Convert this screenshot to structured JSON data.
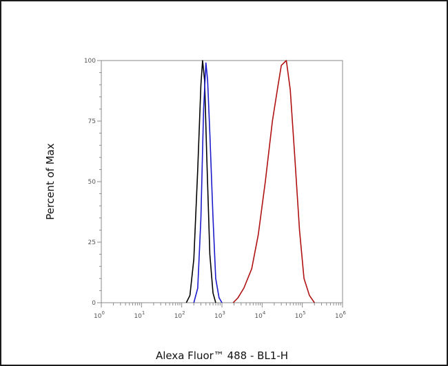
{
  "chart_data": {
    "type": "line",
    "xlabel": "Alexa Fluor™ 488 - BL1-H",
    "ylabel": "Percent of Max",
    "x_scale": "log",
    "xlim": [
      1,
      1000000
    ],
    "ylim": [
      0,
      100
    ],
    "x_ticks": [
      {
        "value": 1,
        "base": "10",
        "exp": "0"
      },
      {
        "value": 10,
        "base": "10",
        "exp": "1"
      },
      {
        "value": 100,
        "base": "10",
        "exp": "2"
      },
      {
        "value": 1000,
        "base": "10",
        "exp": "3"
      },
      {
        "value": 10000,
        "base": "10",
        "exp": "4"
      },
      {
        "value": 100000,
        "base": "10",
        "exp": "5"
      },
      {
        "value": 1000000,
        "base": "10",
        "exp": "6"
      }
    ],
    "y_ticks": [
      "0",
      "25",
      "50",
      "75",
      "100"
    ],
    "series": [
      {
        "color": "#000000",
        "points": [
          [
            130,
            0
          ],
          [
            160,
            3
          ],
          [
            200,
            18
          ],
          [
            250,
            55
          ],
          [
            300,
            90
          ],
          [
            330,
            100
          ],
          [
            370,
            92
          ],
          [
            420,
            60
          ],
          [
            500,
            20
          ],
          [
            600,
            4
          ],
          [
            700,
            0
          ]
        ]
      },
      {
        "color": "#1a1acc",
        "points": [
          [
            200,
            0
          ],
          [
            250,
            6
          ],
          [
            300,
            35
          ],
          [
            350,
            80
          ],
          [
            400,
            99
          ],
          [
            440,
            92
          ],
          [
            500,
            70
          ],
          [
            600,
            35
          ],
          [
            700,
            10
          ],
          [
            850,
            2
          ],
          [
            1000,
            0
          ]
        ]
      },
      {
        "color": "#b01010",
        "points": [
          [
            1900,
            0
          ],
          [
            2500,
            2
          ],
          [
            3500,
            6
          ],
          [
            5500,
            14
          ],
          [
            8000,
            28
          ],
          [
            12000,
            50
          ],
          [
            18000,
            75
          ],
          [
            25000,
            90
          ],
          [
            30000,
            98
          ],
          [
            40000,
            100
          ],
          [
            50000,
            88
          ],
          [
            65000,
            60
          ],
          [
            85000,
            30
          ],
          [
            110000,
            10
          ],
          [
            150000,
            3
          ],
          [
            200000,
            0
          ]
        ]
      }
    ],
    "grid": false,
    "legend": "none"
  }
}
